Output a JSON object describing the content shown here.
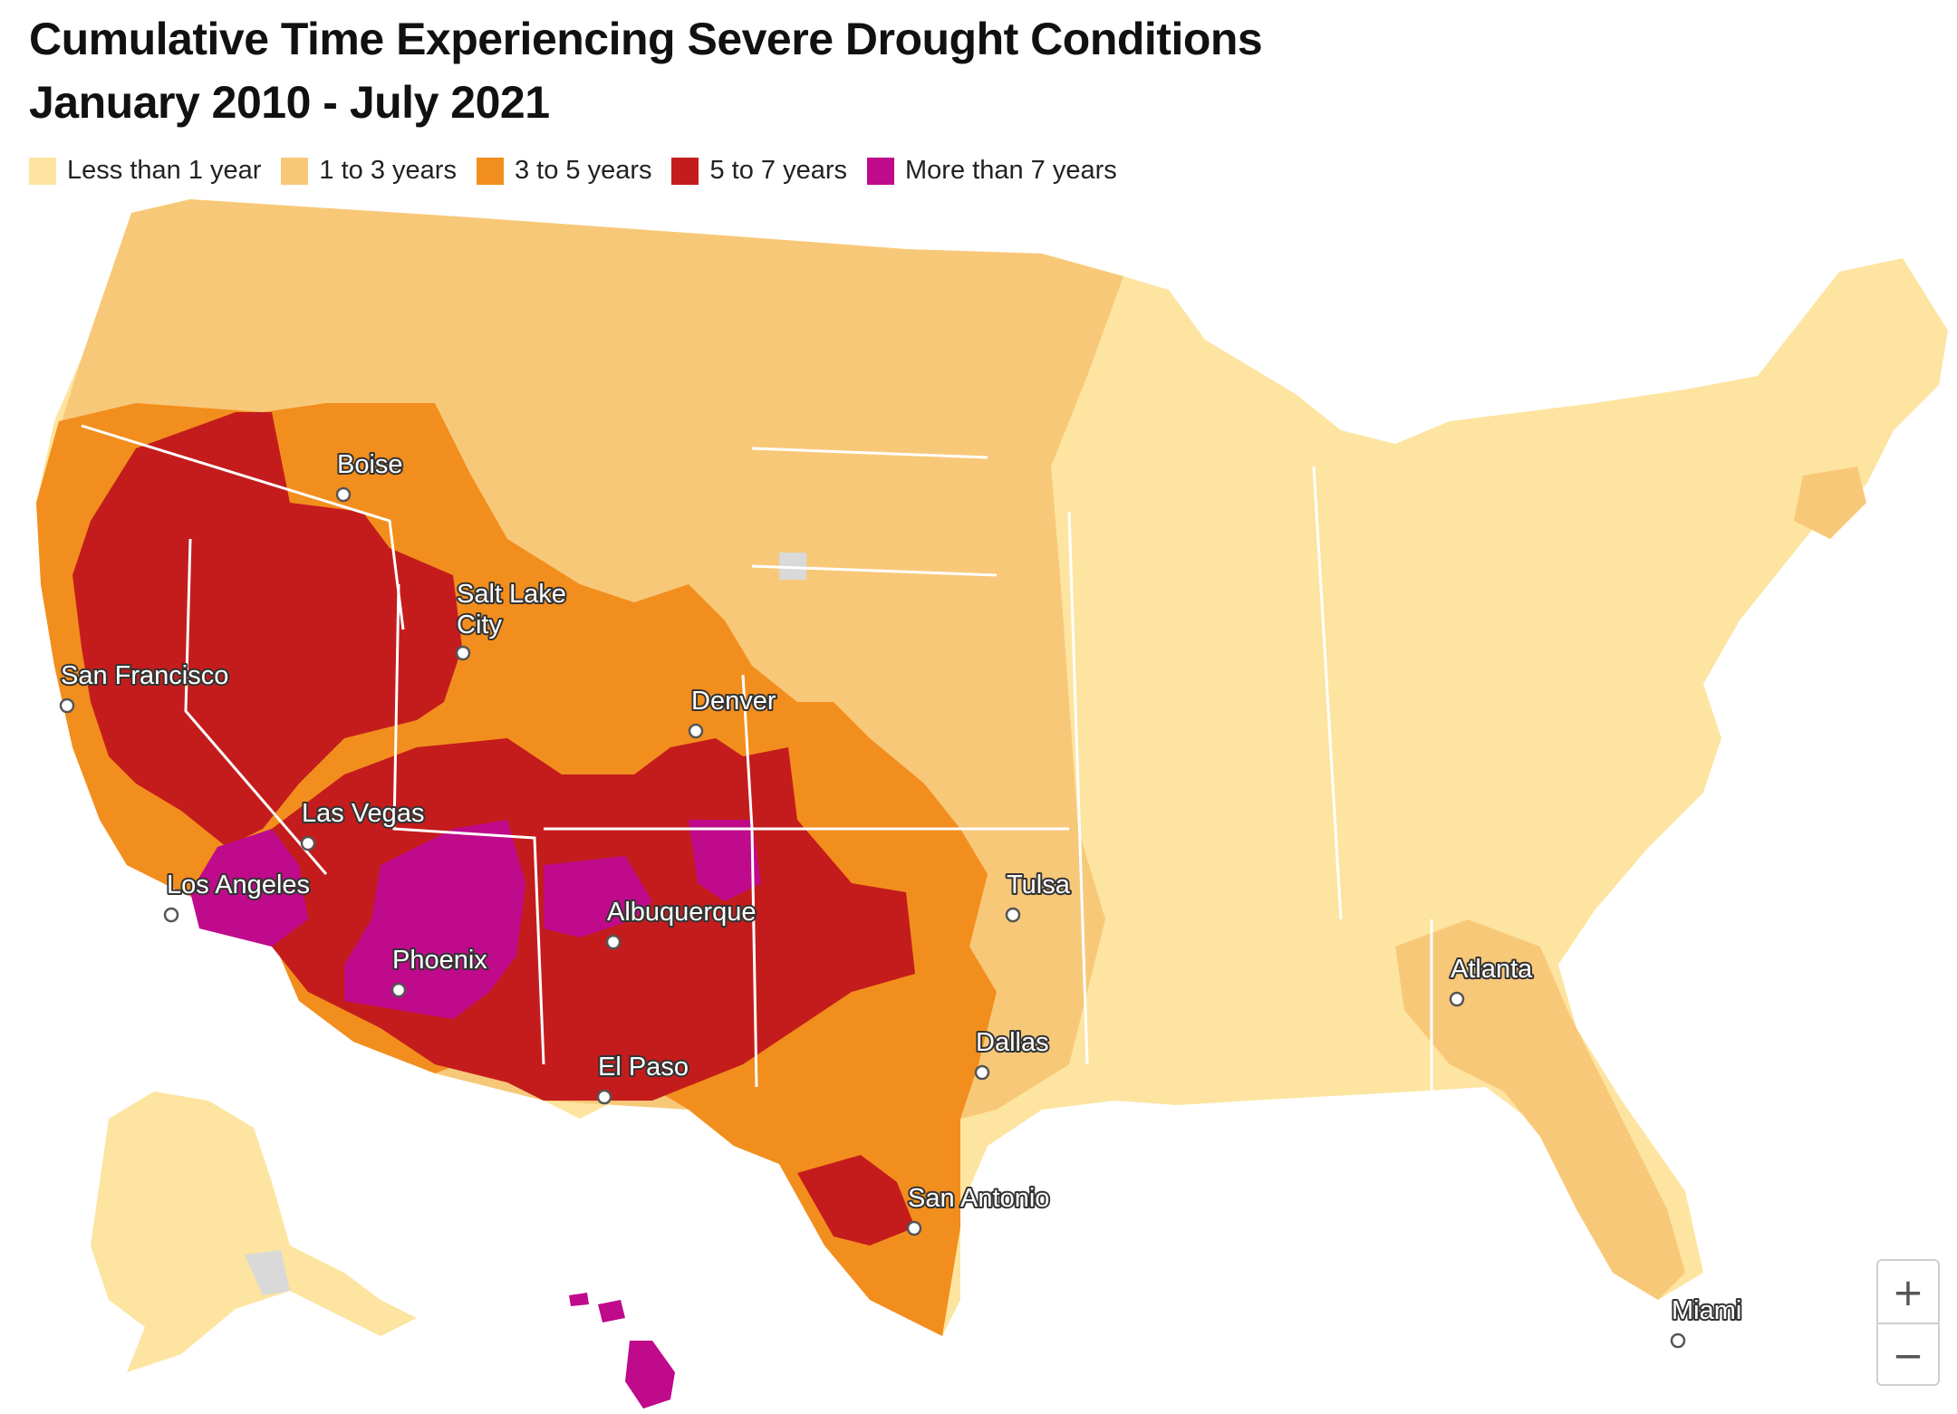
{
  "title": {
    "line1": "Cumulative Time Experiencing Severe Drought Conditions",
    "line2": "January 2010 - July 2021"
  },
  "legend": [
    {
      "label": "Less than 1 year",
      "color": "#fde4a0"
    },
    {
      "label": "1 to 3 years",
      "color": "#f8c879"
    },
    {
      "label": "3 to 5 years",
      "color": "#f28e1d"
    },
    {
      "label": "5 to 7 years",
      "color": "#c41c1c"
    },
    {
      "label": "More than 7 years",
      "color": "#bf0a8c"
    }
  ],
  "colors": {
    "no_data": "#d9d9d9",
    "borders": "#ffffff"
  },
  "cities": [
    {
      "name": "Boise"
    },
    {
      "name": "Salt Lake City"
    },
    {
      "name": "San Francisco"
    },
    {
      "name": "Denver"
    },
    {
      "name": "Las Vegas"
    },
    {
      "name": "Los Angeles"
    },
    {
      "name": "Albuquerque"
    },
    {
      "name": "Tulsa"
    },
    {
      "name": "Phoenix"
    },
    {
      "name": "Atlanta"
    },
    {
      "name": "Dallas"
    },
    {
      "name": "El Paso"
    },
    {
      "name": "San Antonio"
    },
    {
      "name": "Miami"
    }
  ],
  "salt_lake_line1": "Salt Lake",
  "salt_lake_line2": "City",
  "zoom": {
    "in_label": "+",
    "out_label": "−"
  }
}
